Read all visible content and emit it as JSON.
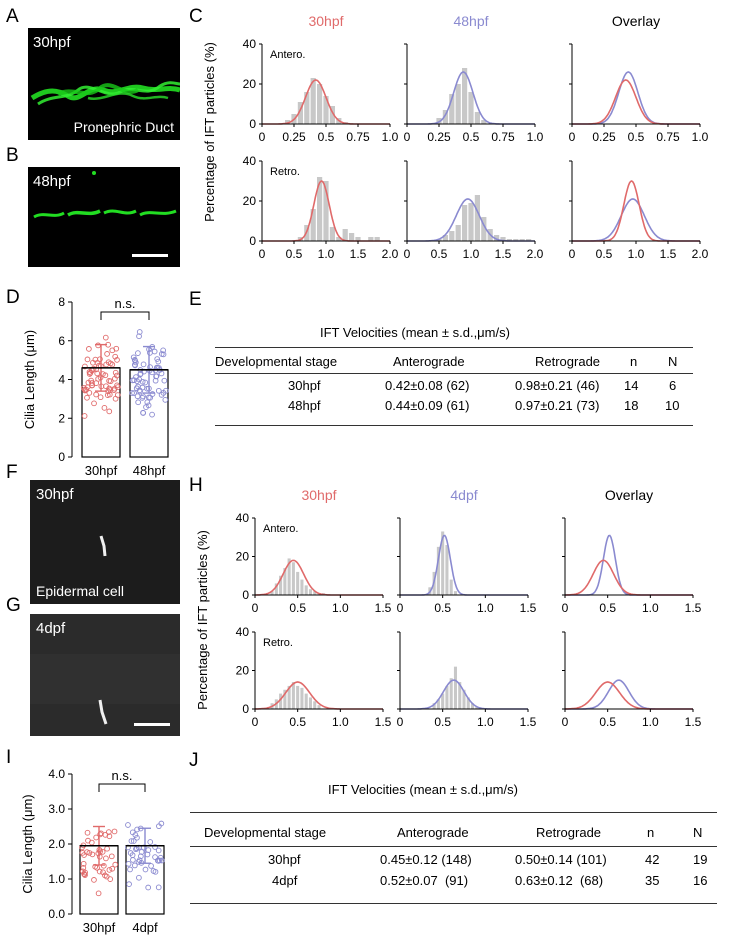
{
  "panels": {
    "A": {
      "letter": "A",
      "label": "30hpf",
      "caption": "Pronephric Duct"
    },
    "B": {
      "letter": "B",
      "label": "48hpf"
    },
    "C": {
      "letter": "C"
    },
    "D": {
      "letter": "D"
    },
    "E": {
      "letter": "E"
    },
    "F": {
      "letter": "F",
      "label": "30hpf",
      "caption": "Epidermal cell"
    },
    "G": {
      "letter": "G",
      "label": "4dpf"
    },
    "H": {
      "letter": "H"
    },
    "I": {
      "letter": "I"
    },
    "J": {
      "letter": "J"
    }
  },
  "colors": {
    "red": "#e06a6a",
    "blue": "#8a8ad0",
    "bar": "#c8c8c8",
    "green": "#22dd22"
  },
  "table_E": {
    "title": "IFT Velocities (mean ± s.d.,μm/s)",
    "headers": [
      "Developmental stage",
      "Anterograde",
      "Retrograde",
      "n",
      "N"
    ],
    "rows": [
      [
        "30hpf",
        "0.42±0.08 (62)",
        "0.98±0.21 (46)",
        "14",
        "6"
      ],
      [
        "48hpf",
        "0.44±0.09 (61)",
        "0.97±0.21 (73)",
        "18",
        "10"
      ]
    ]
  },
  "table_J": {
    "title": "IFT Velocities (mean ± s.d.,μm/s)",
    "headers": [
      "Developmental stage",
      "Anterograde",
      "Retrograde",
      "n",
      "N"
    ],
    "rows": [
      [
        "30hpf",
        "0.45±0.12 (148)",
        "0.50±0.14 (101)",
        "42",
        "19"
      ],
      [
        "4dpf",
        "0.52±0.07  (91)",
        "0.63±0.12  (68)",
        "35",
        "16"
      ]
    ]
  },
  "chart_data": [
    {
      "id": "C",
      "type": "bar",
      "ylabel": "Percentage of IFT particles (%)",
      "column_titles": [
        "30hpf",
        "48hpf",
        "Overlay"
      ],
      "row_labels": [
        "Antero.",
        "Retro."
      ],
      "rows": [
        {
          "xlim": [
            0,
            1.0
          ],
          "ylim": [
            0,
            40
          ],
          "xticks": [
            "0",
            "0.25",
            "0.5",
            "0.75",
            "1.0"
          ],
          "yticks": [
            "0",
            "20",
            "40"
          ],
          "bin_width": 0.05,
          "hist_30": {
            "x": [
              0.2,
              0.25,
              0.3,
              0.35,
              0.4,
              0.45,
              0.5,
              0.55,
              0.6,
              0.65
            ],
            "y": [
              2,
              5,
              11,
              16,
              23,
              20,
              14,
              9,
              3,
              1
            ]
          },
          "hist_48": {
            "x": [
              0.25,
              0.3,
              0.35,
              0.4,
              0.45,
              0.5,
              0.55,
              0.6
            ],
            "y": [
              3,
              7,
              15,
              20,
              28,
              16,
              6,
              2
            ]
          },
          "fit_30": {
            "mean": 0.42,
            "sd": 0.08,
            "peak": 22
          },
          "fit_48": {
            "mean": 0.44,
            "sd": 0.075,
            "peak": 26
          }
        },
        {
          "xlim": [
            0,
            2.0
          ],
          "ylim": [
            0,
            40
          ],
          "xticks": [
            "0",
            "0.5",
            "1.0",
            "1.5",
            "2.0"
          ],
          "yticks": [
            "0",
            "20",
            "40"
          ],
          "bin_width": 0.1,
          "hist_30": {
            "x": [
              0.6,
              0.7,
              0.8,
              0.9,
              1.0,
              1.1,
              1.2,
              1.3,
              1.4,
              1.5,
              1.6,
              1.7,
              1.8
            ],
            "y": [
              2,
              8,
              16,
              32,
              30,
              7,
              2,
              6,
              4,
              2,
              0,
              2,
              2
            ]
          },
          "hist_48": {
            "x": [
              0.5,
              0.6,
              0.7,
              0.8,
              0.9,
              1.0,
              1.1,
              1.2,
              1.3,
              1.4,
              1.5,
              1.6,
              1.7,
              1.8,
              1.9
            ],
            "y": [
              1,
              3,
              5,
              8,
              18,
              19,
              23,
              12,
              6,
              3,
              2,
              1,
              1,
              1,
              1
            ]
          },
          "fit_30": {
            "mean": 0.93,
            "sd": 0.12,
            "peak": 30
          },
          "fit_48": {
            "mean": 0.95,
            "sd": 0.18,
            "peak": 21
          }
        }
      ]
    },
    {
      "id": "D",
      "type": "bar",
      "ylabel": "Cilia Length (μm)",
      "categories": [
        "30hpf",
        "48hpf"
      ],
      "values": [
        4.6,
        4.5
      ],
      "sd": [
        1.2,
        1.2
      ],
      "ylim": [
        0,
        8
      ],
      "yticks": [
        "0",
        "2",
        "4",
        "6",
        "8"
      ],
      "significance": "n.s.",
      "points_min": 1.6,
      "points_max": 7.0
    },
    {
      "id": "H",
      "type": "bar",
      "ylabel": "Percentage of IFT particles (%)",
      "column_titles": [
        "30hpf",
        "4dpf",
        "Overlay"
      ],
      "row_labels": [
        "Antero.",
        "Retro."
      ],
      "rows": [
        {
          "xlim": [
            0,
            1.5
          ],
          "ylim": [
            0,
            40
          ],
          "xticks": [
            "0",
            "0.5",
            "1.0",
            "1.5"
          ],
          "yticks": [
            "0",
            "20",
            "40"
          ],
          "bin_width": 0.05,
          "hist_30": {
            "x": [
              0.2,
              0.25,
              0.3,
              0.35,
              0.4,
              0.45,
              0.5,
              0.55,
              0.6,
              0.65,
              0.7,
              0.75,
              0.8
            ],
            "y": [
              2,
              6,
              10,
              14,
              19,
              17,
              12,
              8,
              5,
              3,
              2,
              1,
              1
            ]
          },
          "hist_48": {
            "x": [
              0.35,
              0.4,
              0.45,
              0.5,
              0.55,
              0.6,
              0.65
            ],
            "y": [
              4,
              12,
              25,
              33,
              26,
              8,
              2
            ]
          },
          "fit_30": {
            "mean": 0.45,
            "sd": 0.12,
            "peak": 18
          },
          "fit_48": {
            "mean": 0.52,
            "sd": 0.07,
            "peak": 31
          }
        },
        {
          "xlim": [
            0,
            1.5
          ],
          "ylim": [
            0,
            40
          ],
          "xticks": [
            "0",
            "0.5",
            "1.0",
            "1.5"
          ],
          "yticks": [
            "0",
            "20",
            "40"
          ],
          "bin_width": 0.05,
          "hist_30": {
            "x": [
              0.2,
              0.25,
              0.3,
              0.35,
              0.4,
              0.45,
              0.5,
              0.55,
              0.6,
              0.65,
              0.7,
              0.75
            ],
            "y": [
              3,
              5,
              8,
              10,
              12,
              14,
              12,
              11,
              8,
              6,
              4,
              2
            ]
          },
          "hist_48": {
            "x": [
              0.4,
              0.45,
              0.5,
              0.55,
              0.6,
              0.65,
              0.7,
              0.75,
              0.8,
              0.85,
              0.9
            ],
            "y": [
              3,
              5,
              8,
              12,
              16,
              22,
              14,
              10,
              6,
              3,
              1
            ]
          },
          "fit_30": {
            "mean": 0.5,
            "sd": 0.14,
            "peak": 14
          },
          "fit_48": {
            "mean": 0.63,
            "sd": 0.12,
            "peak": 15
          }
        }
      ]
    },
    {
      "id": "I",
      "type": "bar",
      "ylabel": "Cilia Length (μm)",
      "categories": [
        "30hpf",
        "4dpf"
      ],
      "values": [
        1.95,
        1.95
      ],
      "sd": [
        0.55,
        0.5
      ],
      "ylim": [
        0,
        4
      ],
      "yticks": [
        "0.0",
        "1.0",
        "2.0",
        "3.0",
        "4.0"
      ],
      "significance": "n.s.",
      "points_min": 0.3,
      "points_max": 3.0
    }
  ]
}
